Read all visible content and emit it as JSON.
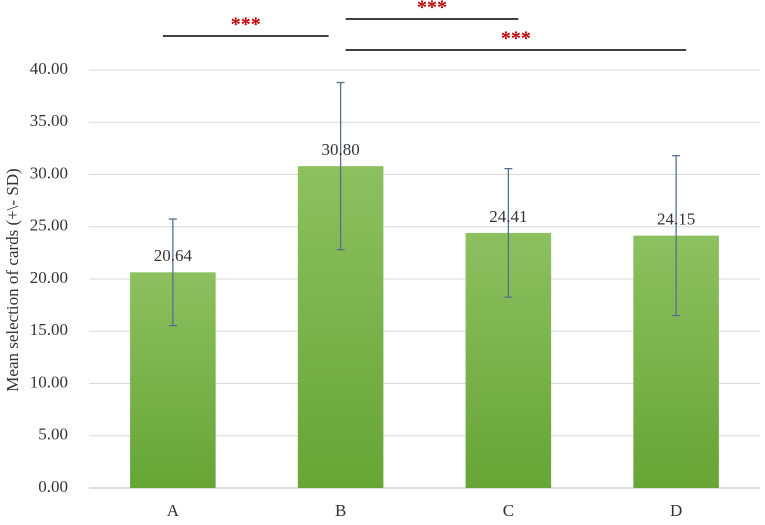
{
  "chart_data": {
    "type": "bar",
    "y_label": "Mean selection of cards (+\\- SD)",
    "categories": [
      "A",
      "B",
      "C",
      "D"
    ],
    "values": [
      20.64,
      30.8,
      24.41,
      24.15
    ],
    "value_labels": [
      "20.64",
      "30.80",
      "24.41",
      "24.15"
    ],
    "errors": [
      5.1,
      8.0,
      6.15,
      7.65
    ],
    "color": "#70ad47",
    "error_color": "#5a6e8c",
    "ylim": [
      0,
      40
    ],
    "yticks": [
      {
        "value": 0,
        "label": "0.00"
      },
      {
        "value": 5,
        "label": "5.00"
      },
      {
        "value": 10,
        "label": "10.00"
      },
      {
        "value": 15,
        "label": "15.00"
      },
      {
        "value": 20,
        "label": "20.00"
      },
      {
        "value": 25,
        "label": "25.00"
      },
      {
        "value": 30,
        "label": "30.00"
      },
      {
        "value": 35,
        "label": "35.00"
      },
      {
        "value": 40,
        "label": "40.00"
      }
    ],
    "grid": true,
    "annotations": [
      {
        "text": "***",
        "groups": [
          "A",
          "B"
        ],
        "color": "#c00000"
      },
      {
        "text": "***",
        "groups": [
          "B",
          "C"
        ],
        "color": "#c00000"
      },
      {
        "text": "***",
        "groups": [
          "B",
          "D"
        ],
        "color": "#c00000"
      }
    ]
  }
}
